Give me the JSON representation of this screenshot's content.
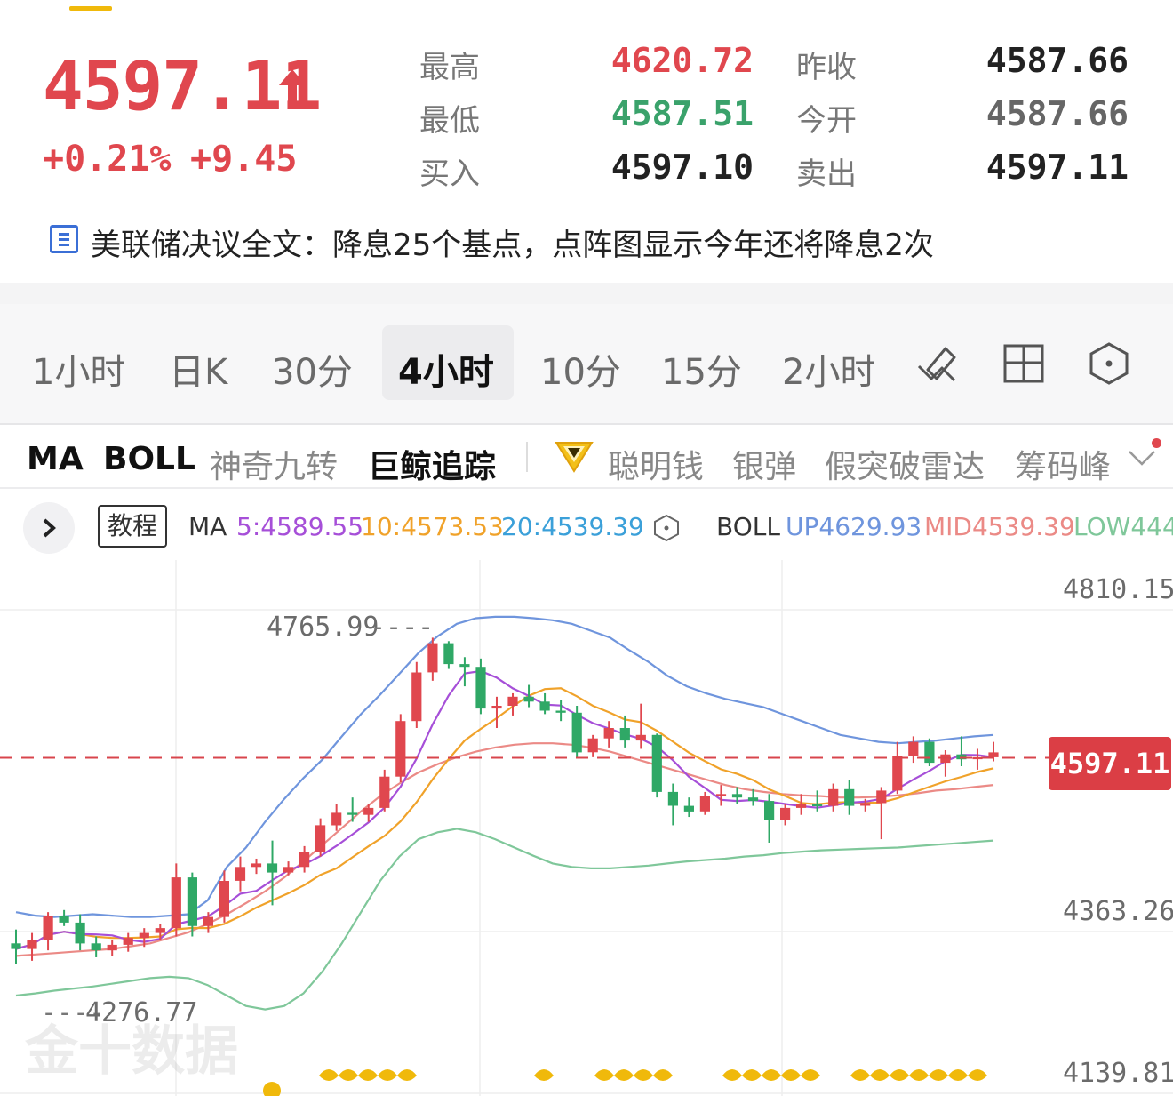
{
  "quote": {
    "price": "4597.11",
    "change_pct": "+0.21%",
    "change_abs": "+9.45",
    "direction_icon": "up-arrow-icon",
    "rows": [
      {
        "label_a": "最高",
        "value_a": "4620.72",
        "color_a": "#e0474e",
        "label_b": "昨收",
        "value_b": "4587.66",
        "color_b": "#222222"
      },
      {
        "label_a": "最低",
        "value_a": "4587.51",
        "color_a": "#3aa26b",
        "label_b": "今开",
        "value_b": "4587.66",
        "color_b": "#666666"
      },
      {
        "label_a": "买入",
        "value_a": "4597.10",
        "color_a": "#222222",
        "label_b": "卖出",
        "value_b": "4597.11",
        "color_b": "#222222"
      }
    ]
  },
  "news": {
    "icon": "news-icon",
    "text": "美联储决议全文：降息25个基点，点阵图显示今年还将降息2次"
  },
  "periods": [
    "1小时",
    "日K",
    "30分",
    "4小时",
    "10分",
    "15分",
    "2小时"
  ],
  "selected_period": "4小时",
  "toolbar_icons": [
    "draw-tool-icon",
    "layout-grid-icon",
    "settings-hexagon-icon"
  ],
  "indicators": [
    "MA",
    "BOLL",
    "神奇九转",
    "巨鲸追踪",
    "聪明钱",
    "银弹",
    "假突破雷达",
    "筹码峰"
  ],
  "legend": {
    "tutorial": "教程",
    "ma_label": "MA",
    "ma5": "5:4589.55",
    "ma10": "10:4573.53",
    "ma20": "20:4539.39",
    "boll_label": "BOLL",
    "boll_up": "UP4629.93",
    "boll_mid": "MID4539.39",
    "boll_low": "LOW444"
  },
  "colors": {
    "up": "#e0474e",
    "down": "#2fa866",
    "ma5": "#a64fd8",
    "ma10": "#f0a22a",
    "ma20": "#3ba0d9",
    "boll_up": "#6f95dd",
    "boll_mid": "#eb8a86",
    "boll_low": "#7fc79a"
  },
  "chart_data": {
    "type": "candlestick",
    "y_axis_labels": [
      "4810.15",
      "4363.26",
      "4139.81"
    ],
    "ylim": [
      4139.81,
      4810.15
    ],
    "last_price": "4597.11",
    "annotations": {
      "high": "4765.99",
      "low": "4276.77"
    },
    "candles": [
      {
        "o": 4330,
        "h": 4350,
        "l": 4300,
        "c": 4322
      },
      {
        "o": 4322,
        "h": 4345,
        "l": 4305,
        "c": 4335
      },
      {
        "o": 4335,
        "h": 4375,
        "l": 4320,
        "c": 4370
      },
      {
        "o": 4370,
        "h": 4378,
        "l": 4355,
        "c": 4360
      },
      {
        "o": 4360,
        "h": 4372,
        "l": 4320,
        "c": 4330
      },
      {
        "o": 4330,
        "h": 4340,
        "l": 4310,
        "c": 4320
      },
      {
        "o": 4320,
        "h": 4335,
        "l": 4312,
        "c": 4328
      },
      {
        "o": 4328,
        "h": 4345,
        "l": 4318,
        "c": 4338
      },
      {
        "o": 4338,
        "h": 4352,
        "l": 4325,
        "c": 4345
      },
      {
        "o": 4345,
        "h": 4358,
        "l": 4335,
        "c": 4352
      },
      {
        "o": 4352,
        "h": 4445,
        "l": 4340,
        "c": 4425
      },
      {
        "o": 4425,
        "h": 4432,
        "l": 4340,
        "c": 4355
      },
      {
        "o": 4355,
        "h": 4375,
        "l": 4345,
        "c": 4368
      },
      {
        "o": 4368,
        "h": 4435,
        "l": 4360,
        "c": 4420
      },
      {
        "o": 4420,
        "h": 4455,
        "l": 4405,
        "c": 4440
      },
      {
        "o": 4440,
        "h": 4452,
        "l": 4430,
        "c": 4445
      },
      {
        "o": 4445,
        "h": 4478,
        "l": 4385,
        "c": 4432
      },
      {
        "o": 4432,
        "h": 4448,
        "l": 4428,
        "c": 4440
      },
      {
        "o": 4440,
        "h": 4470,
        "l": 4432,
        "c": 4462
      },
      {
        "o": 4462,
        "h": 4510,
        "l": 4455,
        "c": 4500
      },
      {
        "o": 4500,
        "h": 4530,
        "l": 4492,
        "c": 4518
      },
      {
        "o": 4518,
        "h": 4540,
        "l": 4505,
        "c": 4515
      },
      {
        "o": 4515,
        "h": 4530,
        "l": 4505,
        "c": 4525
      },
      {
        "o": 4525,
        "h": 4580,
        "l": 4520,
        "c": 4570
      },
      {
        "o": 4570,
        "h": 4660,
        "l": 4562,
        "c": 4650
      },
      {
        "o": 4650,
        "h": 4735,
        "l": 4640,
        "c": 4720
      },
      {
        "o": 4720,
        "h": 4770,
        "l": 4708,
        "c": 4762
      },
      {
        "o": 4762,
        "h": 4765,
        "l": 4725,
        "c": 4732
      },
      {
        "o": 4732,
        "h": 4742,
        "l": 4700,
        "c": 4728
      },
      {
        "o": 4728,
        "h": 4740,
        "l": 4660,
        "c": 4668
      },
      {
        "o": 4668,
        "h": 4685,
        "l": 4640,
        "c": 4672
      },
      {
        "o": 4672,
        "h": 4690,
        "l": 4658,
        "c": 4685
      },
      {
        "o": 4685,
        "h": 4702,
        "l": 4670,
        "c": 4678
      },
      {
        "o": 4678,
        "h": 4690,
        "l": 4660,
        "c": 4665
      },
      {
        "o": 4665,
        "h": 4680,
        "l": 4650,
        "c": 4662
      },
      {
        "o": 4662,
        "h": 4672,
        "l": 4598,
        "c": 4605
      },
      {
        "o": 4605,
        "h": 4630,
        "l": 4598,
        "c": 4625
      },
      {
        "o": 4625,
        "h": 4650,
        "l": 4612,
        "c": 4640
      },
      {
        "o": 4640,
        "h": 4658,
        "l": 4612,
        "c": 4622
      },
      {
        "o": 4622,
        "h": 4675,
        "l": 4610,
        "c": 4630
      },
      {
        "o": 4630,
        "h": 4632,
        "l": 4540,
        "c": 4548
      },
      {
        "o": 4548,
        "h": 4560,
        "l": 4500,
        "c": 4528
      },
      {
        "o": 4528,
        "h": 4540,
        "l": 4512,
        "c": 4520
      },
      {
        "o": 4520,
        "h": 4548,
        "l": 4515,
        "c": 4542
      },
      {
        "o": 4542,
        "h": 4558,
        "l": 4528,
        "c": 4545
      },
      {
        "o": 4545,
        "h": 4555,
        "l": 4530,
        "c": 4540
      },
      {
        "o": 4540,
        "h": 4552,
        "l": 4528,
        "c": 4535
      },
      {
        "o": 4535,
        "h": 4545,
        "l": 4475,
        "c": 4508
      },
      {
        "o": 4508,
        "h": 4530,
        "l": 4500,
        "c": 4525
      },
      {
        "o": 4525,
        "h": 4545,
        "l": 4515,
        "c": 4530
      },
      {
        "o": 4530,
        "h": 4550,
        "l": 4520,
        "c": 4528
      },
      {
        "o": 4528,
        "h": 4560,
        "l": 4520,
        "c": 4552
      },
      {
        "o": 4552,
        "h": 4565,
        "l": 4515,
        "c": 4528
      },
      {
        "o": 4528,
        "h": 4538,
        "l": 4520,
        "c": 4532
      },
      {
        "o": 4532,
        "h": 4555,
        "l": 4480,
        "c": 4550
      },
      {
        "o": 4550,
        "h": 4620,
        "l": 4545,
        "c": 4600
      },
      {
        "o": 4600,
        "h": 4628,
        "l": 4590,
        "c": 4620
      },
      {
        "o": 4620,
        "h": 4625,
        "l": 4585,
        "c": 4590
      },
      {
        "o": 4590,
        "h": 4608,
        "l": 4570,
        "c": 4602
      },
      {
        "o": 4602,
        "h": 4628,
        "l": 4585,
        "c": 4595
      },
      {
        "o": 4595,
        "h": 4610,
        "l": 4580,
        "c": 4598
      },
      {
        "o": 4598,
        "h": 4620,
        "l": 4592,
        "c": 4605
      }
    ],
    "boll_up": [
      4375,
      4370,
      4368,
      4370,
      4372,
      4370,
      4368,
      4368,
      4370,
      4372,
      4392,
      4440,
      4468,
      4505,
      4538,
      4568,
      4595,
      4628,
      4660,
      4688,
      4718,
      4748,
      4772,
      4790,
      4798,
      4800,
      4800,
      4798,
      4795,
      4790,
      4780,
      4770,
      4752,
      4735,
      4715,
      4700,
      4690,
      4682,
      4676,
      4670,
      4660,
      4650,
      4640,
      4630,
      4625,
      4620,
      4618,
      4620,
      4622,
      4625,
      4628,
      4630
    ],
    "boll_mid": [
      4312,
      4314,
      4316,
      4318,
      4320,
      4322,
      4326,
      4330,
      4338,
      4346,
      4358,
      4372,
      4388,
      4405,
      4425,
      4448,
      4472,
      4496,
      4520,
      4542,
      4560,
      4576,
      4588,
      4598,
      4606,
      4612,
      4616,
      4618,
      4618,
      4616,
      4612,
      4606,
      4598,
      4590,
      4582,
      4574,
      4566,
      4558,
      4552,
      4548,
      4545,
      4543,
      4542,
      4540,
      4540,
      4541,
      4543,
      4546,
      4550,
      4552,
      4555,
      4558
    ],
    "boll_low": [
      4255,
      4258,
      4262,
      4265,
      4268,
      4272,
      4276,
      4280,
      4282,
      4280,
      4270,
      4255,
      4240,
      4235,
      4240,
      4258,
      4290,
      4330,
      4375,
      4420,
      4455,
      4480,
      4490,
      4495,
      4490,
      4480,
      4468,
      4456,
      4445,
      4440,
      4438,
      4438,
      4440,
      4442,
      4445,
      4448,
      4450,
      4452,
      4455,
      4457,
      4460,
      4462,
      4464,
      4465,
      4466,
      4467,
      4468,
      4470,
      4472,
      4474,
      4476,
      4478
    ]
  },
  "watermark": "金十数据"
}
